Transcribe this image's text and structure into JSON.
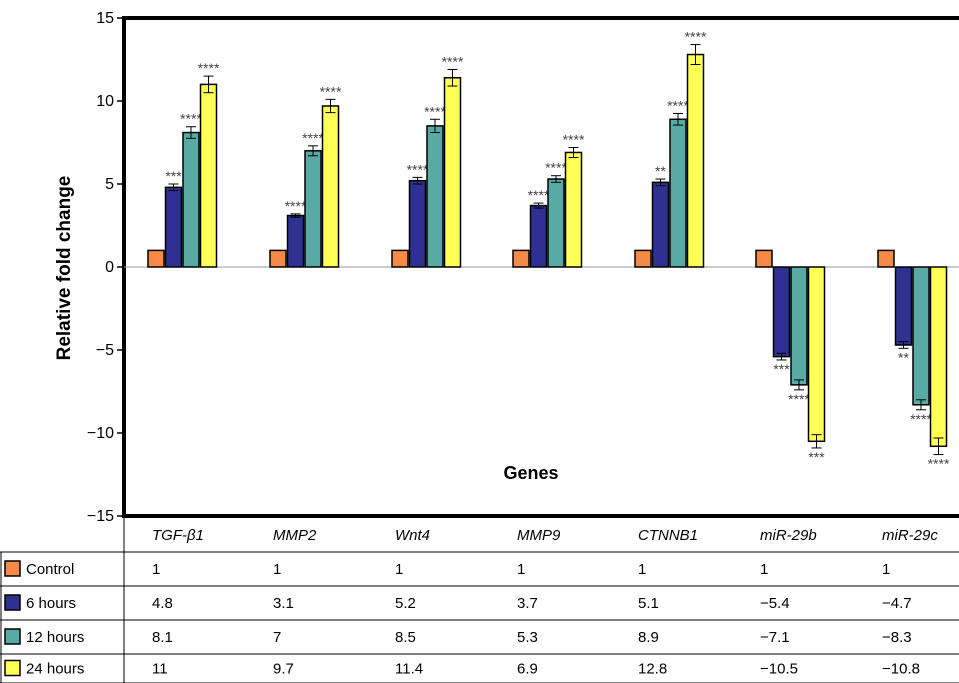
{
  "chart_data": {
    "type": "bar",
    "ylabel": "Relative fold change",
    "xlabel": "Genes",
    "ylim": [
      -15,
      15
    ],
    "yticks": [
      "15",
      "10",
      "5",
      "0",
      "−5",
      "−10",
      "−15"
    ],
    "categories": [
      "TGF-β1",
      "MMP2",
      "Wnt4",
      "MMP9",
      "CTNNB1",
      "miR-29b",
      "miR-29c"
    ],
    "series": [
      {
        "name": "Control",
        "color": "#f48a45",
        "values": [
          1,
          1,
          1,
          1,
          1,
          1,
          1
        ],
        "display": [
          "1",
          "1",
          "1",
          "1",
          "1",
          "1",
          "1"
        ],
        "errors": [
          0,
          0,
          0,
          0,
          0,
          0,
          0
        ],
        "stars": [
          "",
          "",
          "",
          "",
          "",
          "",
          ""
        ]
      },
      {
        "name": "6 hours",
        "color": "#2e3192",
        "values": [
          4.8,
          3.1,
          5.2,
          3.7,
          5.1,
          -5.4,
          -4.7
        ],
        "display": [
          "4.8",
          "3.1",
          "5.2",
          "3.7",
          "5.1",
          "−5.4",
          "−4.7"
        ],
        "errors": [
          0.2,
          0.1,
          0.2,
          0.15,
          0.2,
          0.2,
          0.2
        ],
        "stars": [
          "***",
          "****",
          "****",
          "****",
          "**",
          "***",
          "**"
        ]
      },
      {
        "name": "12 hours",
        "color": "#58aaa4",
        "values": [
          8.1,
          7,
          8.5,
          5.3,
          8.9,
          -7.1,
          -8.3
        ],
        "display": [
          "8.1",
          "7",
          "8.5",
          "5.3",
          "8.9",
          "−7.1",
          "−8.3"
        ],
        "errors": [
          0.35,
          0.3,
          0.4,
          0.2,
          0.35,
          0.3,
          0.3
        ],
        "stars": [
          "****",
          "****",
          "****",
          "****",
          "****",
          "****",
          "****"
        ]
      },
      {
        "name": "24 hours",
        "color": "#ffff55",
        "values": [
          11,
          9.7,
          11.4,
          6.9,
          12.8,
          -10.5,
          -10.8
        ],
        "display": [
          "11",
          "9.7",
          "11.4",
          "6.9",
          "12.8",
          "−10.5",
          "−10.8"
        ],
        "errors": [
          0.5,
          0.4,
          0.5,
          0.3,
          0.6,
          0.4,
          0.5
        ],
        "stars": [
          "****",
          "****",
          "****",
          "****",
          "****",
          "***",
          "****"
        ]
      }
    ],
    "grid": false,
    "legend": "table-below"
  }
}
